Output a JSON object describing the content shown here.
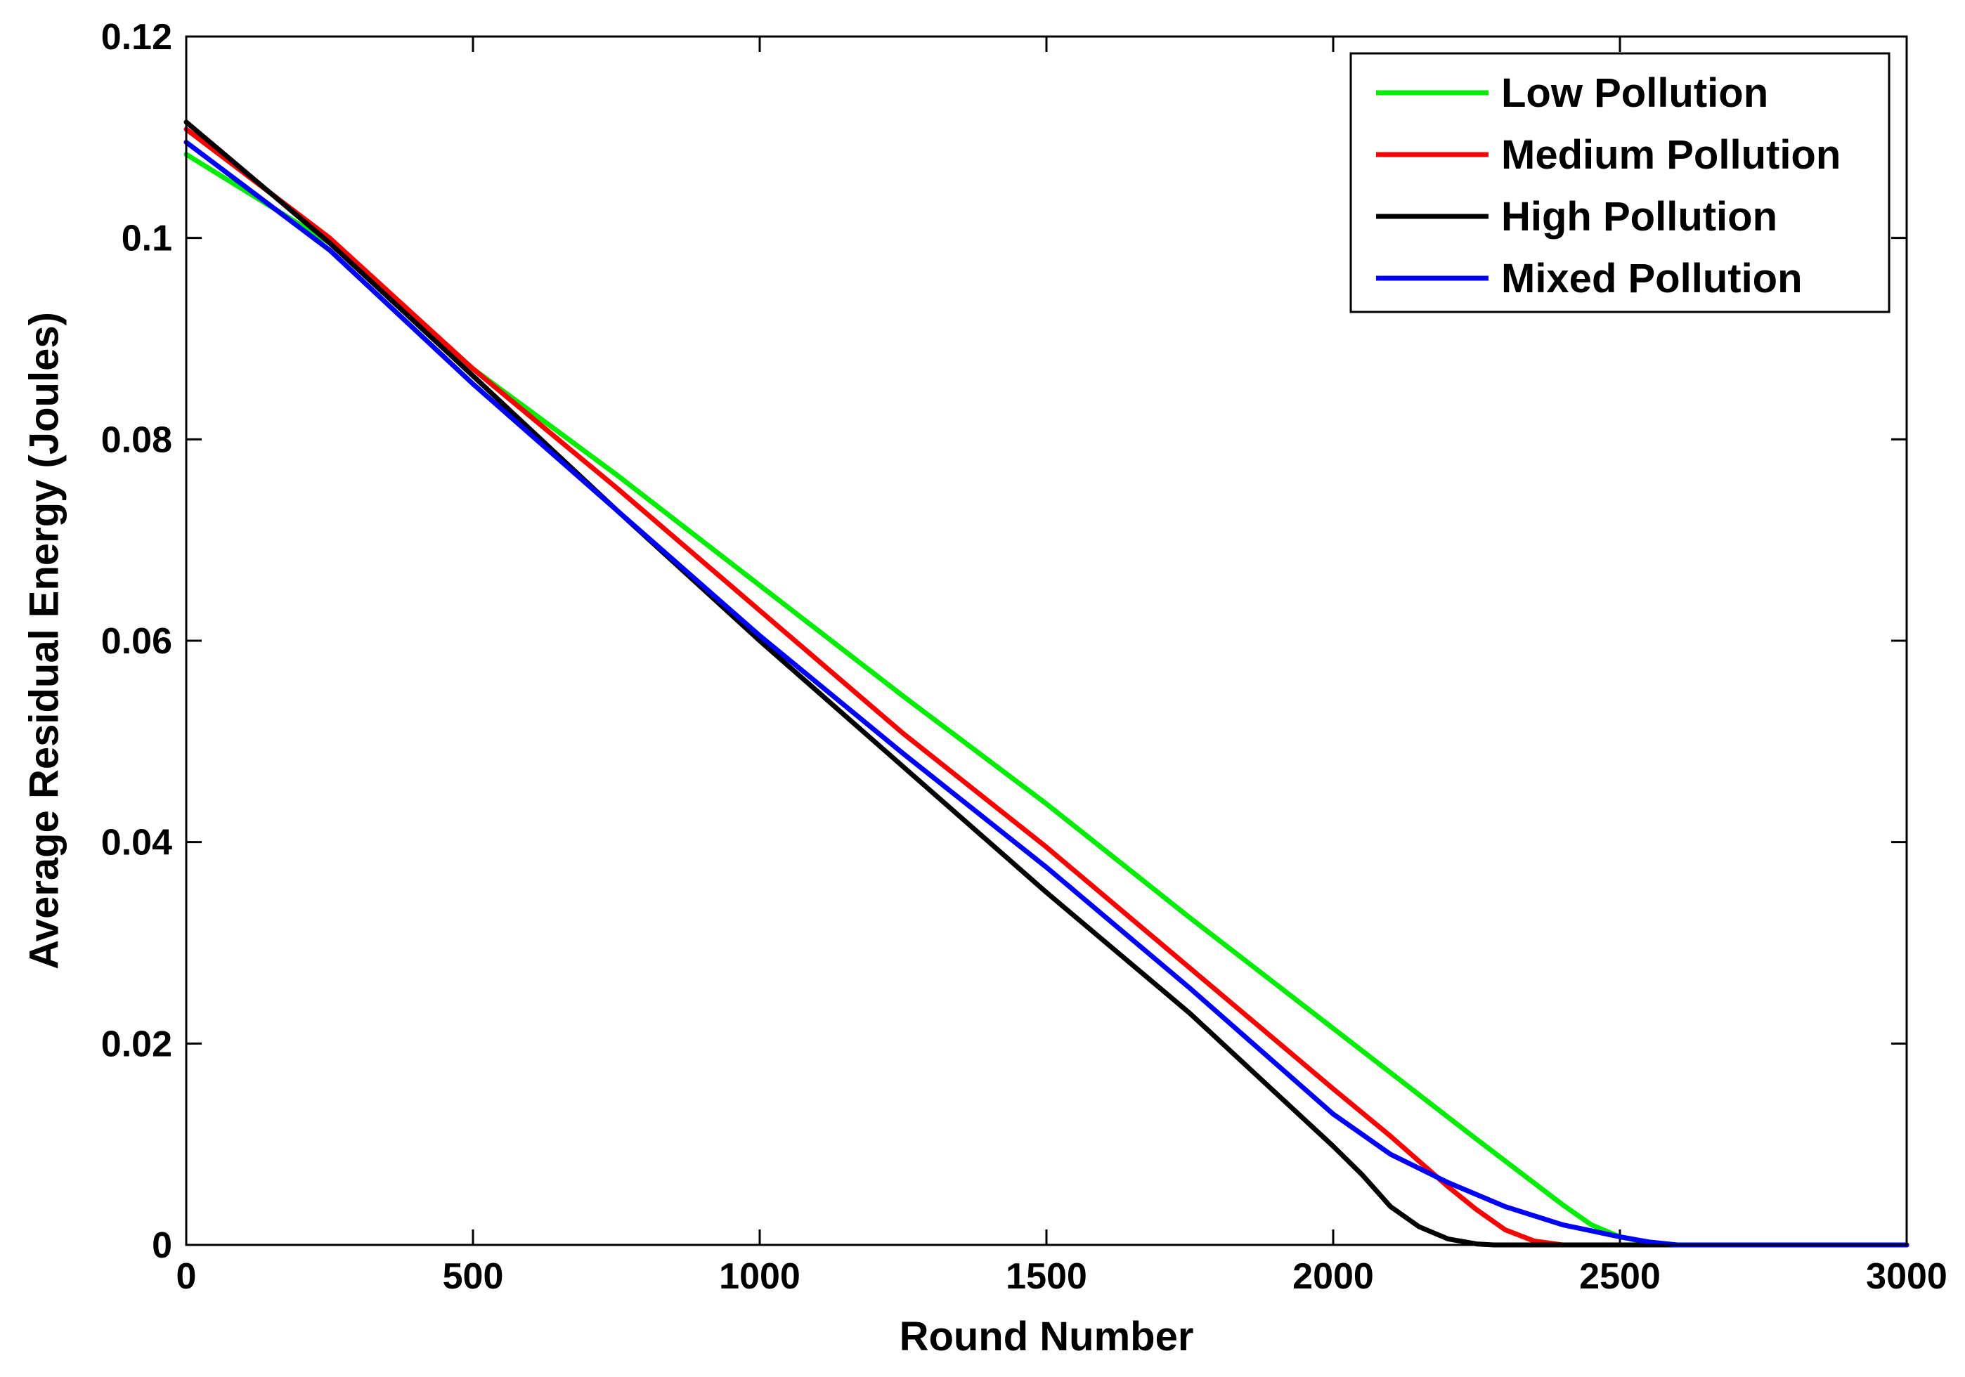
{
  "chart_data": {
    "type": "line",
    "title": "",
    "xlabel": "Round Number",
    "ylabel": "Average Residual Energy (Joules)",
    "xlim": [
      0,
      3000
    ],
    "ylim": [
      0,
      0.12
    ],
    "x_ticks": [
      0,
      500,
      1000,
      1500,
      2000,
      2500,
      3000
    ],
    "x_tick_labels": [
      "0",
      "500",
      "1000",
      "1500",
      "2000",
      "2500",
      "3000"
    ],
    "y_ticks": [
      0,
      0.02,
      0.04,
      0.06,
      0.08,
      0.1,
      0.12
    ],
    "y_tick_labels": [
      "0",
      "0.02",
      "0.04",
      "0.06",
      "0.08",
      "0.1",
      "0.12"
    ],
    "grid": false,
    "legend_position": "top-right",
    "series": [
      {
        "name": "Low Pollution",
        "color": "#00ee00",
        "x": [
          0,
          250,
          500,
          750,
          1000,
          1250,
          1500,
          1750,
          2000,
          2250,
          2400,
          2450,
          2500,
          2550,
          2600,
          3000
        ],
        "y": [
          0.1083,
          0.0995,
          0.087,
          0.0765,
          0.0655,
          0.0545,
          0.0438,
          0.0325,
          0.0215,
          0.0105,
          0.004,
          0.002,
          0.0008,
          0.0002,
          0.0,
          0.0
        ]
      },
      {
        "name": "Medium Pollution",
        "color": "#ff0000",
        "x": [
          0,
          250,
          500,
          750,
          1000,
          1250,
          1500,
          1750,
          2000,
          2100,
          2200,
          2250,
          2300,
          2350,
          2400,
          3000
        ],
        "y": [
          0.1108,
          0.1,
          0.087,
          0.0752,
          0.063,
          0.0508,
          0.0395,
          0.0275,
          0.0155,
          0.0108,
          0.0058,
          0.0035,
          0.0015,
          0.0004,
          0.0,
          0.0
        ]
      },
      {
        "name": "High Pollution",
        "color": "#000000",
        "x": [
          0,
          250,
          500,
          750,
          1000,
          1250,
          1500,
          1750,
          2000,
          2050,
          2100,
          2150,
          2200,
          2250,
          2280,
          3000
        ],
        "y": [
          0.1115,
          0.0995,
          0.0863,
          0.073,
          0.06,
          0.0475,
          0.035,
          0.023,
          0.0098,
          0.007,
          0.0038,
          0.0018,
          0.0006,
          0.0001,
          0.0,
          0.0
        ]
      },
      {
        "name": "Mixed Pollution",
        "color": "#0000ff",
        "x": [
          0,
          250,
          500,
          750,
          1000,
          1250,
          1500,
          1750,
          2000,
          2100,
          2200,
          2300,
          2400,
          2500,
          2550,
          2600,
          3000
        ],
        "y": [
          0.1095,
          0.0988,
          0.0855,
          0.073,
          0.0605,
          0.0488,
          0.0375,
          0.0255,
          0.013,
          0.009,
          0.0062,
          0.0038,
          0.002,
          0.0008,
          0.0003,
          0.0,
          0.0
        ]
      }
    ]
  }
}
